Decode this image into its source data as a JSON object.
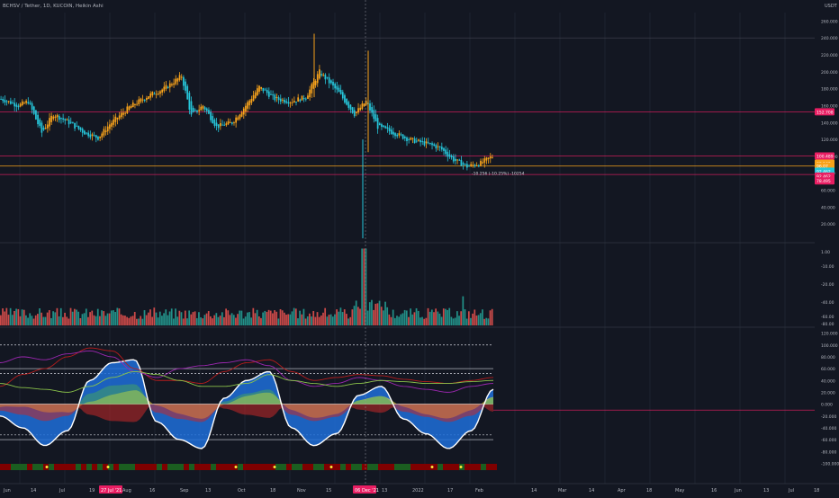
{
  "symbol_line": "BCHSV / Tether, 1D, KUCOIN, Heikin Ashi",
  "currency": "USDT",
  "colors": {
    "background": "#131722",
    "up": "#f7a21b",
    "down": "#26c6da",
    "level": "#e91e63",
    "axis_text": "#b2b5be",
    "grid": "#1e2330",
    "vol_up": "#26a69a",
    "vol_down": "#ef5350"
  },
  "price_axis": {
    "ticks": [
      "260.000",
      "240.000",
      "220.000",
      "200.000",
      "180.000",
      "160.000",
      "140.000",
      "120.000",
      "100.000",
      "80.000",
      "60.000",
      "40.000",
      "20.000"
    ],
    "ticks_top": [
      "1.00",
      "-10.00",
      "-20.00",
      "-40.00",
      "-60.00",
      "-80.00"
    ],
    "labels": [
      {
        "text": "152.708",
        "color": "#e91e63",
        "price": 152.708
      },
      {
        "text": "100.489",
        "color": "#e91e63",
        "price": 100.489
      },
      {
        "text": "88.543",
        "color": "#f7a21b",
        "price": 92
      },
      {
        "text": "96.07",
        "color": "#f7a21b",
        "price": 88.5
      },
      {
        "text": "92.462",
        "color": "#26c6da",
        "price": 82.5
      },
      {
        "text": "92.462",
        "color": "#e91e63",
        "price": 76.7
      },
      {
        "text": "78.495",
        "color": "#e91e63",
        "price": 71
      }
    ],
    "measure_label": "-10.256 (-10.25%) -10254"
  },
  "osc_axis": {
    "ticks": [
      "120.000",
      "100.000",
      "80.000",
      "60.000",
      "40.000",
      "20.000",
      "0.000",
      "-20.000",
      "-40.000",
      "-60.000",
      "-80.000",
      "-100.000"
    ]
  },
  "time_axis": {
    "labels": [
      "Jun",
      "14",
      "Jul",
      "19",
      "Aug",
      "16",
      "Sep",
      "13",
      "Oct",
      "18",
      "Nov",
      "15",
      "13",
      "2022",
      "17",
      "Feb",
      "14",
      "Mar",
      "14",
      "Apr",
      "18",
      "May",
      "16",
      "Jun",
      "13",
      "Jul",
      "18"
    ],
    "highlight_labels": [
      "27 Jul '21",
      "06 Dec '21"
    ]
  },
  "chart_data": {
    "type": "candlestick",
    "style": "Heikin Ashi",
    "interval": "1D",
    "y_range": [
      0,
      270
    ],
    "levels": [
      152.708,
      100.489,
      88.543,
      78.495
    ],
    "close_series": [
      {
        "date": "2021-06-01",
        "close": 168
      },
      {
        "date": "2021-06-10",
        "close": 160
      },
      {
        "date": "2021-06-15",
        "close": 165
      },
      {
        "date": "2021-06-22",
        "close": 128
      },
      {
        "date": "2021-06-28",
        "close": 150
      },
      {
        "date": "2021-07-06",
        "close": 140
      },
      {
        "date": "2021-07-14",
        "close": 128
      },
      {
        "date": "2021-07-21",
        "close": 122
      },
      {
        "date": "2021-07-27",
        "close": 138
      },
      {
        "date": "2021-08-06",
        "close": 158
      },
      {
        "date": "2021-08-16",
        "close": 172
      },
      {
        "date": "2021-08-24",
        "close": 180
      },
      {
        "date": "2021-09-02",
        "close": 195
      },
      {
        "date": "2021-09-07",
        "close": 148
      },
      {
        "date": "2021-09-13",
        "close": 160
      },
      {
        "date": "2021-09-20",
        "close": 135
      },
      {
        "date": "2021-09-28",
        "close": 140
      },
      {
        "date": "2021-10-05",
        "close": 160
      },
      {
        "date": "2021-10-12",
        "close": 182
      },
      {
        "date": "2021-10-20",
        "close": 168
      },
      {
        "date": "2021-10-28",
        "close": 165
      },
      {
        "date": "2021-11-05",
        "close": 170
      },
      {
        "date": "2021-11-12",
        "close": 200
      },
      {
        "date": "2021-11-22",
        "close": 175
      },
      {
        "date": "2021-11-30",
        "close": 150
      },
      {
        "date": "2021-12-06",
        "close": 165
      },
      {
        "date": "2021-12-12",
        "close": 135
      },
      {
        "date": "2021-12-20",
        "close": 128
      },
      {
        "date": "2021-12-28",
        "close": 120
      },
      {
        "date": "2022-01-06",
        "close": 115
      },
      {
        "date": "2022-01-13",
        "close": 110
      },
      {
        "date": "2022-01-20",
        "close": 96
      },
      {
        "date": "2022-01-27",
        "close": 88
      },
      {
        "date": "2022-02-03",
        "close": 92
      },
      {
        "date": "2022-02-09",
        "close": 100
      }
    ],
    "volume": {
      "y_range": [
        0,
        120
      ],
      "spike_dates": [
        "2021-12-05",
        "2022-01-25"
      ]
    },
    "oscillator": {
      "y_range": [
        -110,
        130
      ],
      "lines": [
        100,
        60,
        52,
        0,
        -52,
        -60
      ],
      "series": [
        {
          "name": "",
          "color": "#ffffff",
          "values": [
            -20,
            -40,
            -70,
            -45,
            40,
            70,
            75,
            -30,
            -60,
            -75,
            10,
            40,
            55,
            -40,
            -70,
            -50,
            15,
            30,
            -25,
            -50,
            -75,
            -45,
            25
          ]
        },
        {
          "name": "",
          "color": "#b71c1c",
          "values": [
            30,
            50,
            60,
            80,
            95,
            90,
            60,
            40,
            40,
            35,
            55,
            70,
            75,
            55,
            40,
            45,
            50,
            48,
            42,
            38,
            35,
            40,
            45
          ]
        },
        {
          "name": "",
          "color": "#9c27b0",
          "values": [
            70,
            80,
            75,
            85,
            90,
            80,
            55,
            45,
            60,
            65,
            70,
            75,
            65,
            40,
            30,
            35,
            45,
            40,
            30,
            25,
            20,
            30,
            35
          ]
        },
        {
          "name": "",
          "color": "#8bc34a",
          "values": [
            35,
            28,
            25,
            20,
            30,
            45,
            55,
            50,
            40,
            30,
            30,
            35,
            50,
            40,
            35,
            30,
            35,
            40,
            38,
            35,
            35,
            38,
            40
          ]
        }
      ]
    },
    "signal_bar": {
      "colors": [
        "#1b5e20",
        "#7f0000"
      ]
    }
  }
}
